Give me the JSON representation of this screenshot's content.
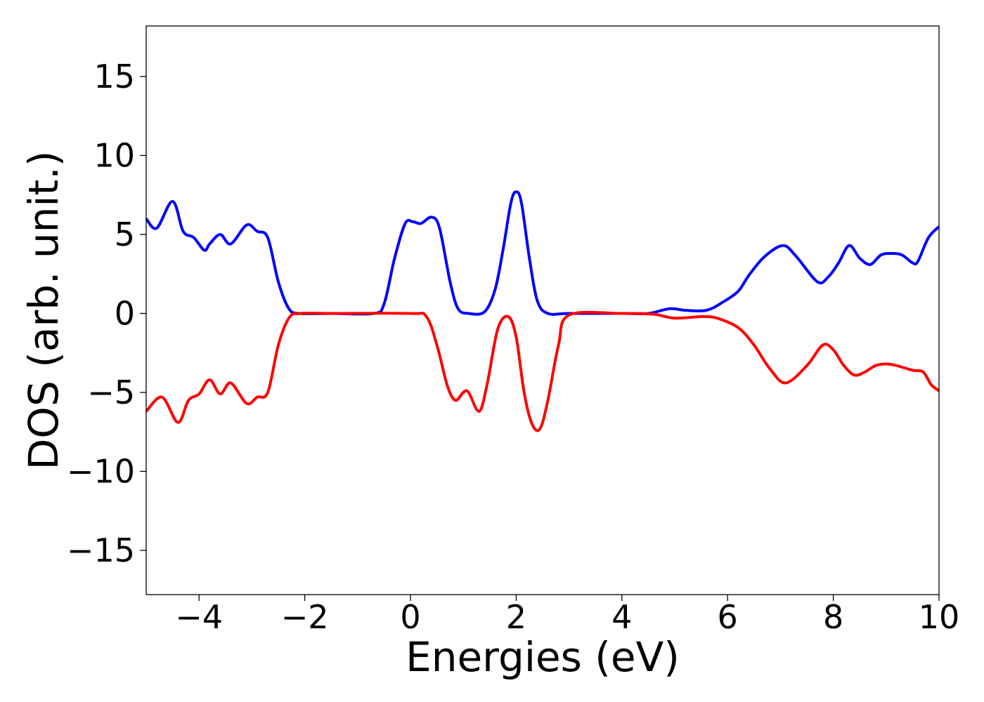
{
  "chart_data": {
    "type": "line",
    "title": "",
    "xlabel": "Energies (eV)",
    "ylabel": "DOS (arb. unit.)",
    "xlim": [
      -5,
      10
    ],
    "ylim": [
      -17.8,
      18.2
    ],
    "xticks": [
      -4,
      -2,
      0,
      2,
      4,
      6,
      8,
      10
    ],
    "yticks": [
      -15,
      -10,
      -5,
      0,
      5,
      10,
      15
    ],
    "xtick_labels": [
      "−4",
      "−2",
      "0",
      "2",
      "4",
      "6",
      "8",
      "10"
    ],
    "ytick_labels": [
      "−15",
      "−10",
      "−5",
      "0",
      "5",
      "10",
      "15"
    ],
    "grid": false,
    "series": [
      {
        "color": "#0000ff",
        "x": [
          -5.0,
          -4.8,
          -4.5,
          -4.3,
          -4.1,
          -3.9,
          -3.8,
          -3.6,
          -3.4,
          -3.1,
          -2.9,
          -2.7,
          -2.5,
          -2.3,
          -2.1,
          -1.5,
          -0.7,
          -0.5,
          -0.3,
          -0.1,
          0.05,
          0.2,
          0.4,
          0.55,
          0.75,
          0.9,
          1.1,
          1.4,
          1.6,
          1.75,
          1.9,
          2.0,
          2.1,
          2.25,
          2.4,
          2.6,
          3.0,
          4.0,
          4.5,
          4.9,
          5.2,
          5.6,
          5.9,
          6.2,
          6.4,
          6.7,
          7.05,
          7.3,
          7.7,
          7.9,
          8.1,
          8.3,
          8.5,
          8.7,
          8.9,
          9.1,
          9.3,
          9.5,
          9.6,
          9.8,
          10.0
        ],
        "y": [
          6.0,
          5.4,
          7.1,
          5.2,
          4.8,
          4.0,
          4.4,
          5.0,
          4.4,
          5.6,
          5.2,
          4.8,
          2.0,
          0.3,
          0.0,
          0.0,
          0.0,
          0.6,
          3.5,
          5.7,
          5.8,
          5.7,
          6.1,
          5.4,
          2.0,
          0.3,
          0.0,
          0.1,
          1.5,
          4.0,
          7.0,
          7.7,
          7.0,
          3.5,
          0.8,
          0.0,
          0.0,
          0.0,
          0.0,
          0.3,
          0.2,
          0.2,
          0.7,
          1.4,
          2.4,
          3.6,
          4.3,
          3.6,
          2.0,
          2.3,
          3.2,
          4.3,
          3.5,
          3.1,
          3.7,
          3.8,
          3.7,
          3.2,
          3.3,
          4.8,
          5.5
        ]
      },
      {
        "color": "#ff0000",
        "x": [
          -5.0,
          -4.7,
          -4.4,
          -4.2,
          -4.0,
          -3.8,
          -3.6,
          -3.4,
          -3.1,
          -2.9,
          -2.7,
          -2.5,
          -2.3,
          -2.1,
          -1.5,
          0.0,
          0.3,
          0.5,
          0.7,
          0.85,
          1.0,
          1.1,
          1.3,
          1.45,
          1.65,
          1.85,
          2.0,
          2.15,
          2.3,
          2.45,
          2.6,
          2.8,
          3.0,
          4.0,
          4.6,
          5.0,
          5.5,
          5.8,
          6.2,
          6.5,
          6.8,
          7.1,
          7.5,
          7.8,
          8.0,
          8.2,
          8.4,
          8.6,
          8.8,
          9.0,
          9.2,
          9.5,
          9.7,
          9.85,
          10.0
        ],
        "y": [
          -6.2,
          -5.3,
          -6.9,
          -5.5,
          -5.1,
          -4.2,
          -5.1,
          -4.4,
          -5.7,
          -5.3,
          -5.0,
          -2.0,
          -0.3,
          0.0,
          0.0,
          0.0,
          -0.2,
          -2.0,
          -4.6,
          -5.5,
          -5.0,
          -5.0,
          -6.2,
          -4.5,
          -1.0,
          -0.2,
          -1.5,
          -5.0,
          -7.0,
          -7.3,
          -5.5,
          -2.0,
          -0.1,
          0.0,
          -0.05,
          -0.3,
          -0.2,
          -0.3,
          -0.9,
          -2.0,
          -3.5,
          -4.4,
          -3.3,
          -2.0,
          -2.3,
          -3.3,
          -3.9,
          -3.7,
          -3.3,
          -3.2,
          -3.3,
          -3.6,
          -3.7,
          -4.5,
          -4.9
        ]
      }
    ]
  }
}
